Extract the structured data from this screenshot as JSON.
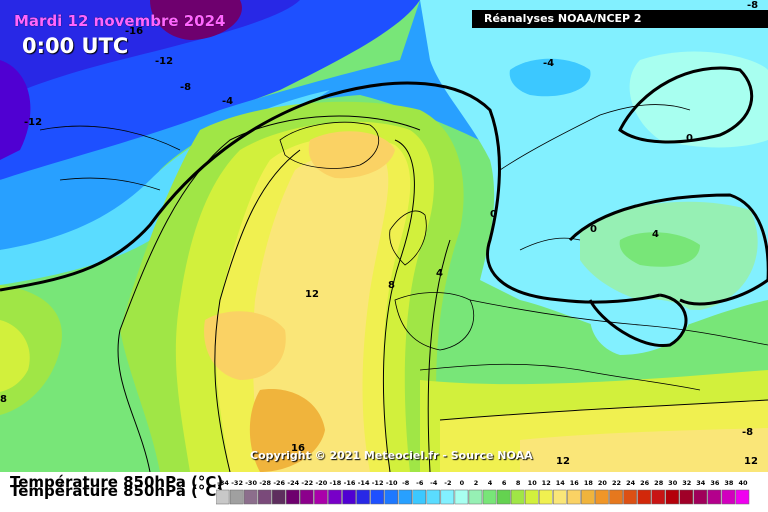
{
  "header": {
    "date": "Mardi 12 novembre 2024",
    "time": "0:00 UTC",
    "source": "Réanalyses NOAA/NCEP 2"
  },
  "footer": {
    "variable": "Température 850hPa (°C)",
    "copyright": "Copyright © 2021 Meteociel.fr - Source NOAA"
  },
  "map": {
    "isotherm_labels": [
      "-16",
      "-12",
      "-8",
      "-4",
      "-12",
      "-4",
      "-8",
      "0",
      "0",
      "4",
      "4",
      "8",
      "12",
      "12",
      "-8",
      "16",
      "12",
      "0",
      "8"
    ]
  },
  "legend": {
    "labels": [
      "-34",
      "-32",
      "-30",
      "-28",
      "-26",
      "-24",
      "-22",
      "-20",
      "-18",
      "-16",
      "-14",
      "-12",
      "-10",
      "-8",
      "-6",
      "-4",
      "-2",
      "0",
      "2",
      "4",
      "6",
      "8",
      "10",
      "12",
      "14",
      "16",
      "18",
      "20",
      "22",
      "24",
      "26",
      "28",
      "30",
      "32",
      "34",
      "36",
      "38",
      "40"
    ],
    "colors": [
      "#c8c8c8",
      "#a0a0a0",
      "#8c6e8c",
      "#7a4a7a",
      "#5e2e5e",
      "#6e006e",
      "#8c008c",
      "#aa00aa",
      "#7800c8",
      "#5000d2",
      "#2828e6",
      "#1e50ff",
      "#1e78ff",
      "#28a0ff",
      "#3cc8ff",
      "#5adcff",
      "#82f0ff",
      "#a8fff0",
      "#96f0b4",
      "#78e678",
      "#64d250",
      "#a0e646",
      "#d2f03c",
      "#f0f050",
      "#fae678",
      "#fad264",
      "#f0b43c",
      "#f09628",
      "#e6781e",
      "#dc5014",
      "#d2280a",
      "#c81414",
      "#b4000a",
      "#a00028",
      "#a0005a",
      "#b4008c",
      "#d200be",
      "#f000f0"
    ]
  }
}
